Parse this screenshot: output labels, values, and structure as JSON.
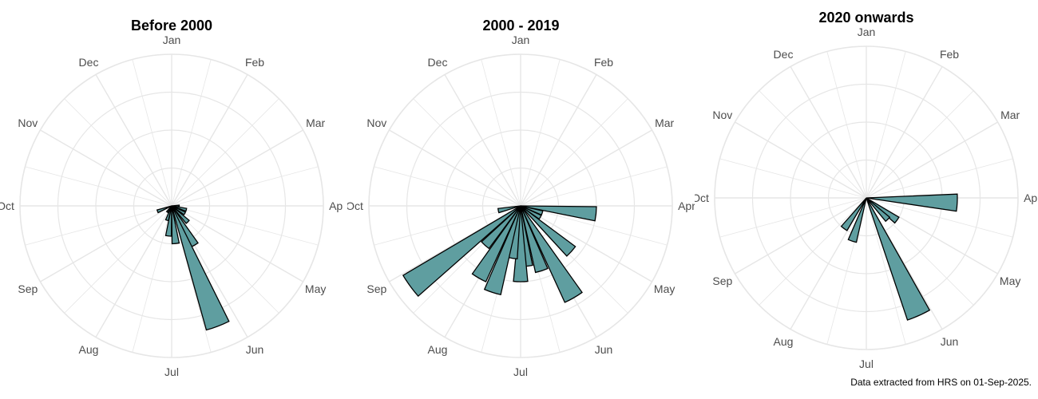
{
  "chart_data": [
    {
      "type": "polar-bar",
      "title": "Before 2000",
      "categories": [
        "Jan",
        "Feb",
        "Mar",
        "Apr",
        "May",
        "Jun",
        "Jul",
        "Aug",
        "Sep",
        "Oct",
        "Nov",
        "Dec"
      ],
      "bins": [
        {
          "month": 4.0,
          "value": 1
        },
        {
          "month": 4.5,
          "value": 2
        },
        {
          "month": 5.0,
          "value": 2
        },
        {
          "month": 5.5,
          "value": 3
        },
        {
          "month": 6.0,
          "value": 6
        },
        {
          "month": 6.3,
          "value": 17
        },
        {
          "month": 6.8,
          "value": 5
        },
        {
          "month": 7.2,
          "value": 4
        },
        {
          "month": 7.6,
          "value": 2
        },
        {
          "month": 8.2,
          "value": 1
        },
        {
          "month": 9.3,
          "value": 2
        }
      ],
      "rmax": 20,
      "grid": true
    },
    {
      "type": "polar-bar",
      "title": "2000 - 2019",
      "categories": [
        "Jan",
        "Feb",
        "Mar",
        "Apr",
        "May",
        "Jun",
        "Jul",
        "Aug",
        "Sep",
        "Oct",
        "Nov",
        "Dec"
      ],
      "bins": [
        {
          "month": 4.2,
          "value": 10
        },
        {
          "month": 4.6,
          "value": 3
        },
        {
          "month": 5.0,
          "value": 3
        },
        {
          "month": 5.4,
          "value": 9
        },
        {
          "month": 6.0,
          "value": 14
        },
        {
          "month": 6.4,
          "value": 9
        },
        {
          "month": 6.8,
          "value": 8
        },
        {
          "month": 7.0,
          "value": 10
        },
        {
          "month": 7.3,
          "value": 7
        },
        {
          "month": 7.6,
          "value": 12
        },
        {
          "month": 8.0,
          "value": 11
        },
        {
          "month": 8.4,
          "value": 7
        },
        {
          "month": 8.8,
          "value": 18
        },
        {
          "month": 9.6,
          "value": 3
        }
      ],
      "rmax": 20,
      "grid": true
    },
    {
      "type": "polar-bar",
      "title": "2020 onwards",
      "categories": [
        "Jan",
        "Feb",
        "Mar",
        "Apr",
        "May",
        "Jun",
        "Jul",
        "Aug",
        "Sep",
        "Oct",
        "Nov",
        "Dec"
      ],
      "bins": [
        {
          "month": 4.1,
          "value": 12
        },
        {
          "month": 5.2,
          "value": 5
        },
        {
          "month": 5.5,
          "value": 4
        },
        {
          "month": 6.2,
          "value": 17
        },
        {
          "month": 7.6,
          "value": 6
        },
        {
          "month": 8.2,
          "value": 5
        }
      ],
      "rmax": 20,
      "grid": true
    }
  ],
  "colors": {
    "bar_fill": "#5f9ea0",
    "bar_stroke": "#000000",
    "grid": "#e6e6e6",
    "label": "#4d4d4d"
  },
  "caption": "Data extracted from HRS on 01-Sep-2025."
}
